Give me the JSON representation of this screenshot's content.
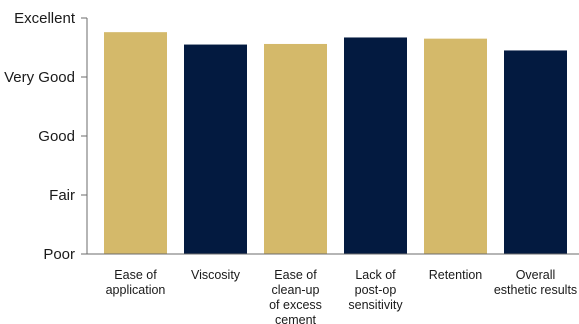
{
  "chart_data": {
    "type": "bar",
    "title": "",
    "xlabel": "",
    "ylabel": "",
    "y_tick_labels": [
      "Poor",
      "Fair",
      "Good",
      "Very Good",
      "Excellent"
    ],
    "ylim": [
      0,
      4
    ],
    "categories": [
      [
        "Ease of",
        "application"
      ],
      [
        "Viscosity"
      ],
      [
        "Ease of",
        "clean-up",
        "of excess",
        "cement"
      ],
      [
        "Lack of",
        "post-op",
        "sensitivity"
      ],
      [
        "Retention"
      ],
      [
        "Overall",
        "esthetic results"
      ]
    ],
    "values": [
      3.76,
      3.55,
      3.56,
      3.67,
      3.65,
      3.45
    ],
    "bar_colors": [
      "#d4b96a",
      "#031a40",
      "#d4b96a",
      "#031a40",
      "#d4b96a",
      "#031a40"
    ],
    "grid": false,
    "legend": "none"
  }
}
